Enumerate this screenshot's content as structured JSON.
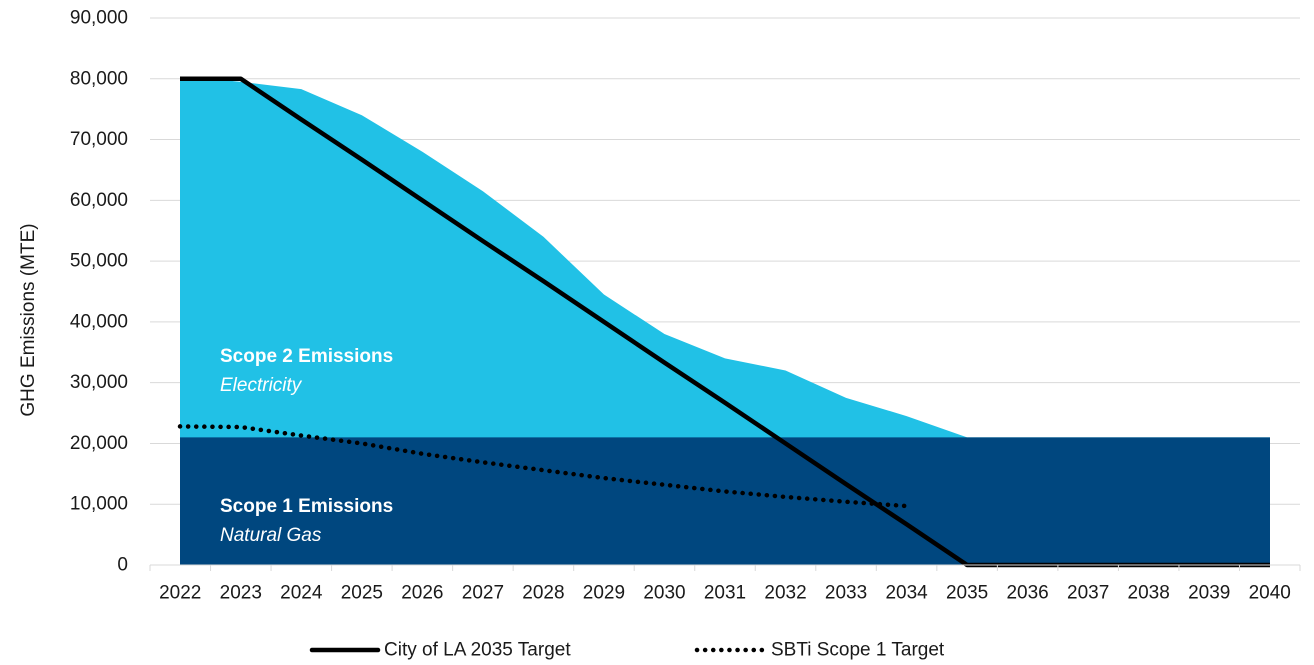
{
  "chart_data": {
    "type": "area",
    "x": [
      2022,
      2023,
      2024,
      2025,
      2026,
      2027,
      2028,
      2029,
      2030,
      2031,
      2032,
      2033,
      2034,
      2035,
      2036,
      2037,
      2038,
      2039,
      2040
    ],
    "categories": [
      "2022",
      "2023",
      "2024",
      "2025",
      "2026",
      "2027",
      "2028",
      "2029",
      "2030",
      "2031",
      "2032",
      "2033",
      "2034",
      "2035",
      "2036",
      "2037",
      "2038",
      "2039",
      "2040"
    ],
    "ylabel": "GHG Emissions (MTE)",
    "ylim": [
      0,
      90000
    ],
    "yticks": [
      0,
      10000,
      20000,
      30000,
      40000,
      50000,
      60000,
      70000,
      80000,
      90000
    ],
    "ytick_labels": [
      "0",
      "10,000",
      "20,000",
      "30,000",
      "40,000",
      "50,000",
      "60,000",
      "70,000",
      "80,000",
      "90,000"
    ],
    "grid": "horizontal",
    "legend_position": "bottom",
    "series": [
      {
        "name": "Scope 1 Emissions",
        "subtitle": "Natural Gas",
        "kind": "area",
        "color": "#00477f",
        "values": [
          21000,
          21000,
          21000,
          21000,
          21000,
          21000,
          21000,
          21000,
          21000,
          21000,
          21000,
          21000,
          21000,
          21000,
          21000,
          21000,
          21000,
          21000,
          21000
        ]
      },
      {
        "name": "Scope 2 Emissions",
        "subtitle": "Electricity",
        "kind": "area",
        "color": "#21c1e6",
        "values": [
          80000,
          79500,
          78300,
          74000,
          68000,
          61500,
          54000,
          44500,
          38000,
          34000,
          32000,
          27500,
          24500,
          21000,
          21000,
          21000,
          21000,
          21000,
          21000
        ]
      },
      {
        "name": "City of LA 2035 Target",
        "kind": "line",
        "style": "solid",
        "color": "#000000",
        "values": [
          80000,
          80000,
          73300,
          66700,
          60000,
          53300,
          46700,
          40000,
          33300,
          26700,
          20000,
          13300,
          6700,
          0,
          0,
          0,
          0,
          0,
          0
        ]
      },
      {
        "name": "SBTi Scope 1 Target",
        "kind": "line",
        "style": "dotted",
        "color": "#000000",
        "values": [
          22800,
          22700,
          21300,
          20000,
          18300,
          16900,
          15600,
          14300,
          13200,
          12100,
          11200,
          10400,
          9700,
          null,
          null,
          null,
          null,
          null,
          null
        ]
      }
    ],
    "annotations": [
      {
        "title": "Scope 2 Emissions",
        "subtitle": "Electricity"
      },
      {
        "title": "Scope 1 Emissions",
        "subtitle": "Natural Gas"
      }
    ],
    "legend": [
      {
        "label": "City of LA 2035 Target",
        "style": "solid"
      },
      {
        "label": "SBTi Scope 1 Target",
        "style": "dotted"
      }
    ]
  }
}
